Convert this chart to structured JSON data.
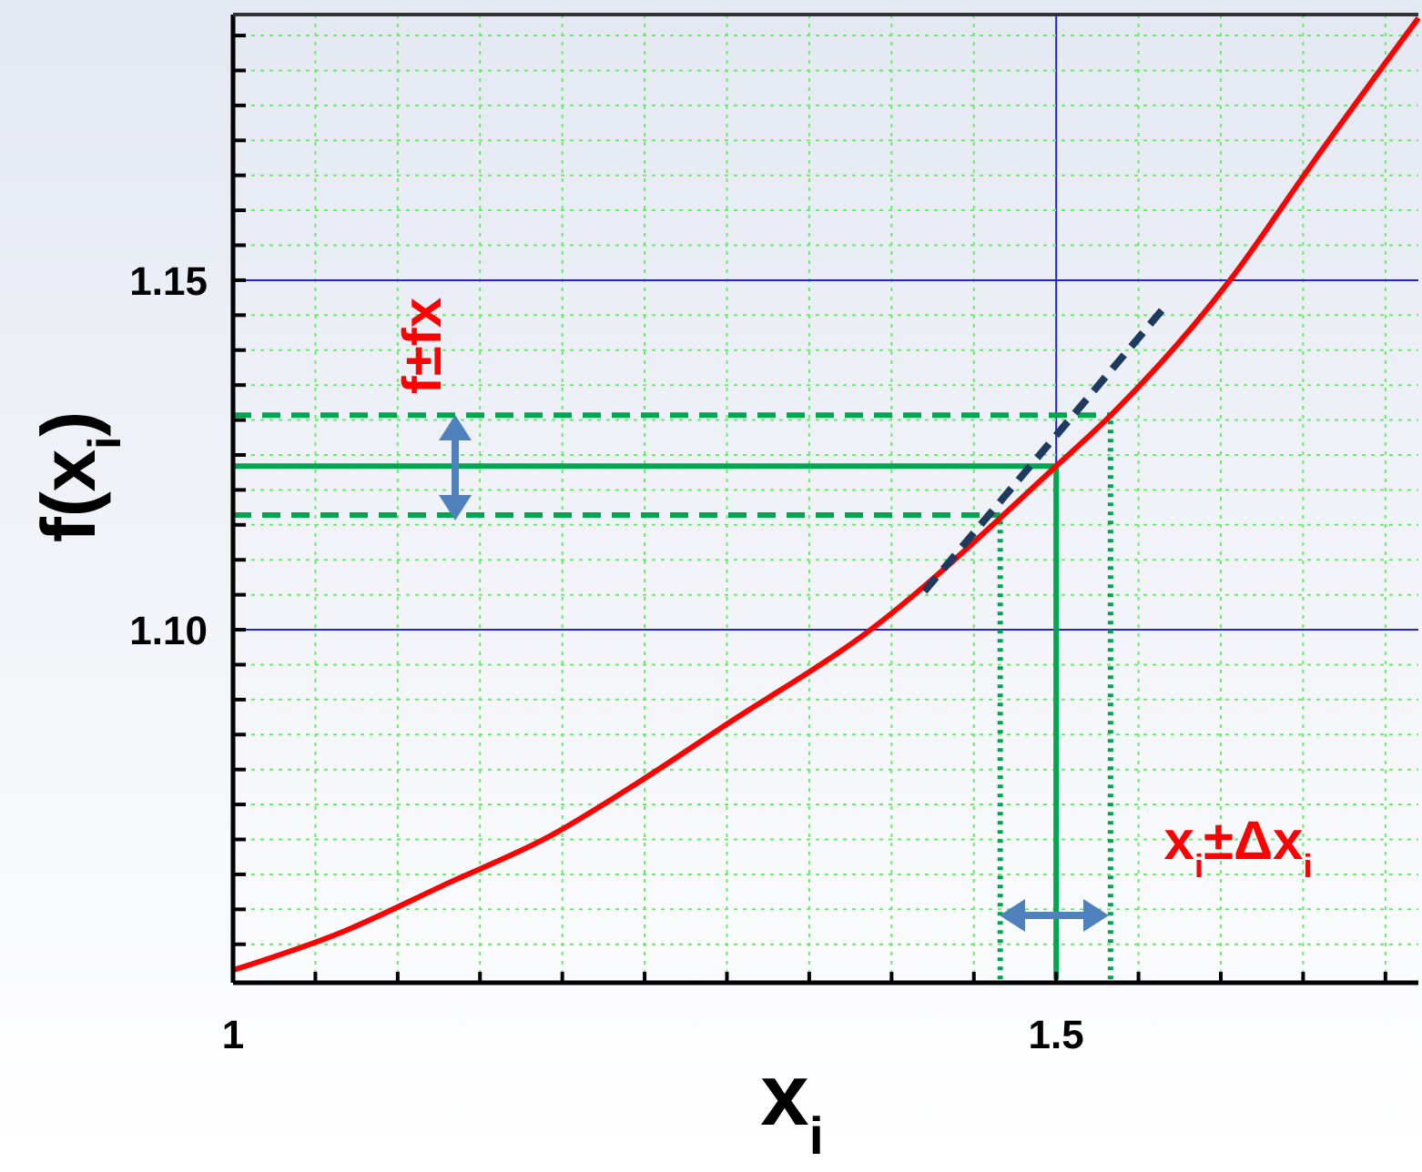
{
  "chart_data": {
    "type": "line",
    "xlabel": "x$_{i}$",
    "ylabel": "f(x$_{i}$)",
    "xlim": [
      1,
      1.72
    ],
    "ylim": [
      1.0495,
      1.188
    ],
    "xticks": [
      1,
      {
        "value": 1.05,
        "label": null
      },
      {
        "value": 1.1,
        "label": null
      },
      {
        "value": 1.15,
        "label": null
      },
      {
        "value": 1.2,
        "label": null
      },
      {
        "value": 1.25,
        "label": null
      },
      {
        "value": 1.3,
        "label": null
      },
      {
        "value": 1.35,
        "label": null
      },
      {
        "value": 1.4,
        "label": null
      },
      {
        "value": 1.45,
        "label": null
      },
      1.5,
      {
        "value": 1.55,
        "label": null
      },
      {
        "value": 1.6,
        "label": null
      },
      {
        "value": 1.65,
        "label": null
      },
      {
        "value": 1.7,
        "label": null
      }
    ],
    "yticks": [
      {
        "value": 1.055,
        "label": null
      },
      {
        "value": 1.06,
        "label": null
      },
      {
        "value": 1.065,
        "label": null
      },
      {
        "value": 1.07,
        "label": null
      },
      {
        "value": 1.075,
        "label": null
      },
      {
        "value": 1.08,
        "label": null
      },
      {
        "value": 1.085,
        "label": null
      },
      {
        "value": 1.09,
        "label": null
      },
      {
        "value": 1.095,
        "label": null
      },
      {
        "value": 1.1,
        "label": "1.10"
      },
      {
        "value": 1.105,
        "label": null
      },
      {
        "value": 1.11,
        "label": null
      },
      {
        "value": 1.115,
        "label": null
      },
      {
        "value": 1.12,
        "label": null
      },
      {
        "value": 1.125,
        "label": null
      },
      {
        "value": 1.13,
        "label": null
      },
      {
        "value": 1.135,
        "label": null
      },
      {
        "value": 1.14,
        "label": null
      },
      {
        "value": 1.145,
        "label": null
      },
      {
        "value": 1.15,
        "label": "1.15"
      },
      {
        "value": 1.155,
        "label": null
      },
      {
        "value": 1.16,
        "label": null
      },
      {
        "value": 1.165,
        "label": null
      },
      {
        "value": 1.17,
        "label": null
      },
      {
        "value": 1.175,
        "label": null
      },
      {
        "value": 1.18,
        "label": null
      },
      {
        "value": 1.185,
        "label": null
      }
    ],
    "grid": true,
    "marker": "none",
    "series": [
      {
        "color": "#00a550",
        "line_style": "solid",
        "x": [
          1,
          1.5,
          1.5
        ],
        "values": [
          1.1234,
          1.1234,
          1.05
        ]
      },
      {
        "color": "#00a550",
        "line_style": "dashed",
        "x": [
          1,
          1.533,
          null,
          1,
          1.466
        ],
        "values": [
          1.1307,
          1.1307,
          null,
          1.1164,
          1.1164
        ]
      },
      {
        "color": "#00a550",
        "line_style": "dotted",
        "x": [
          1.466,
          1.466,
          null,
          1.533,
          1.533
        ],
        "values": [
          1.05,
          1.1164,
          null,
          1.05,
          1.1307
        ]
      },
      {
        "color": "#ff0000",
        "line_style": "solid",
        "x": [
          1,
          1.0667,
          1.1311,
          1.1911,
          1.2478,
          1.3,
          1.3856,
          1.5,
          1.5333,
          1.6056,
          1.6556,
          1.72
        ],
        "values": [
          1.0513,
          1.0568,
          1.0638,
          1.0703,
          1.0784,
          1.0865,
          1.0997,
          1.1234,
          1.1307,
          1.15,
          1.1667,
          1.1875
        ]
      },
      {
        "color": "#1f3a5f",
        "line_style": "dashed",
        "x": [
          1.42,
          1.5667
        ],
        "values": [
          1.1055,
          1.1464
        ]
      }
    ],
    "annotations": [
      "f±fx",
      "x$_{i}$±Δx$_{i}$"
    ]
  }
}
